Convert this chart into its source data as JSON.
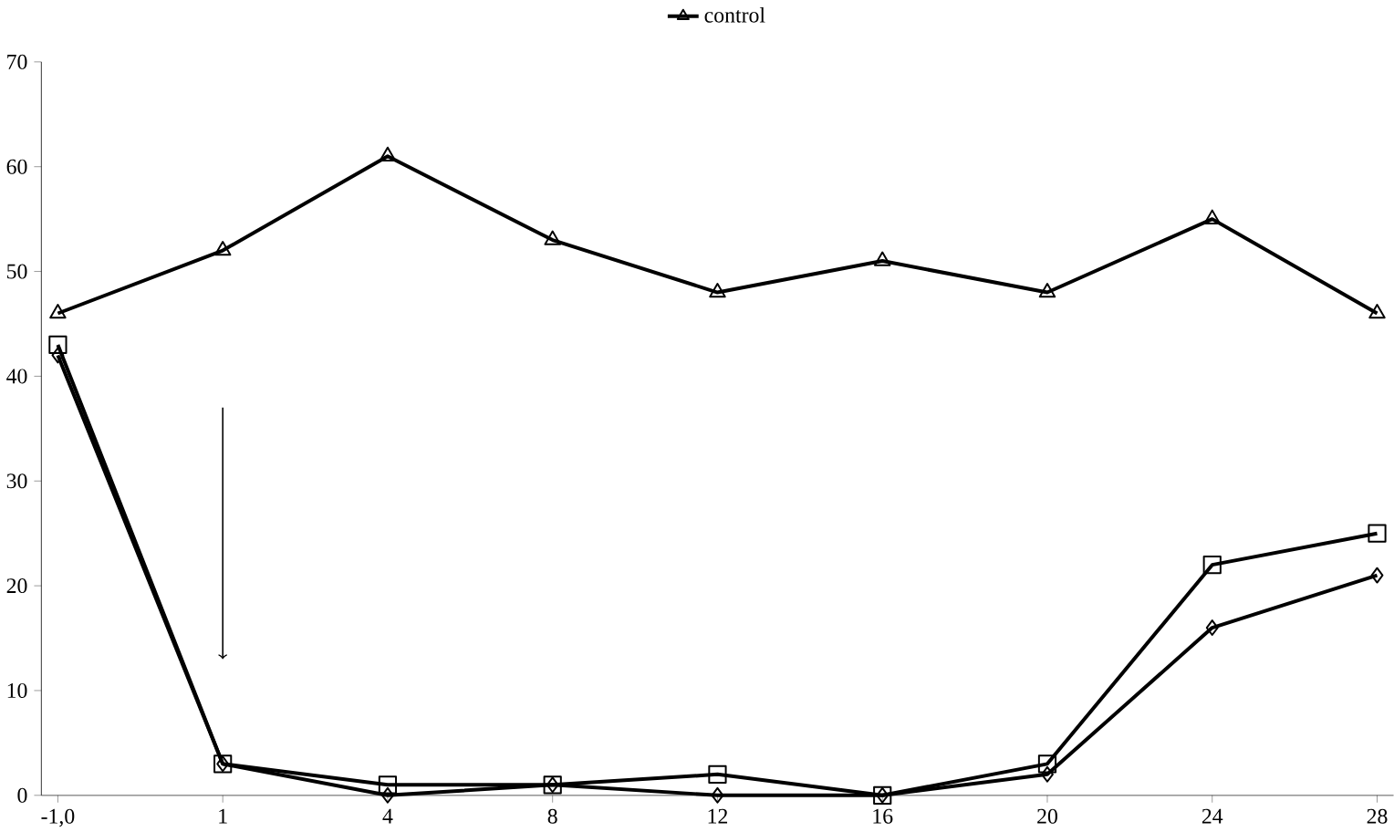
{
  "chart_data": {
    "type": "line",
    "categories": [
      "-1,0",
      "1",
      "4",
      "8",
      "12",
      "16",
      "20",
      "24",
      "28"
    ],
    "series": [
      {
        "color": "#000000",
        "marker": "diamond",
        "values": [
          42,
          3,
          0,
          1,
          0,
          0,
          2,
          16,
          21
        ]
      },
      {
        "color": "#000000",
        "marker": "square",
        "values": [
          43,
          3,
          1,
          1,
          2,
          0,
          3,
          22,
          25
        ]
      },
      {
        "name": "control",
        "color": "#000000",
        "marker": "triangle",
        "values": [
          46,
          52,
          61,
          53,
          48,
          51,
          48,
          55,
          46
        ]
      }
    ],
    "ylim": [
      0,
      70
    ],
    "yticks": [
      0,
      10,
      20,
      30,
      40,
      50,
      60,
      70
    ],
    "grid": false,
    "legend": "top",
    "line_style": "solid"
  }
}
